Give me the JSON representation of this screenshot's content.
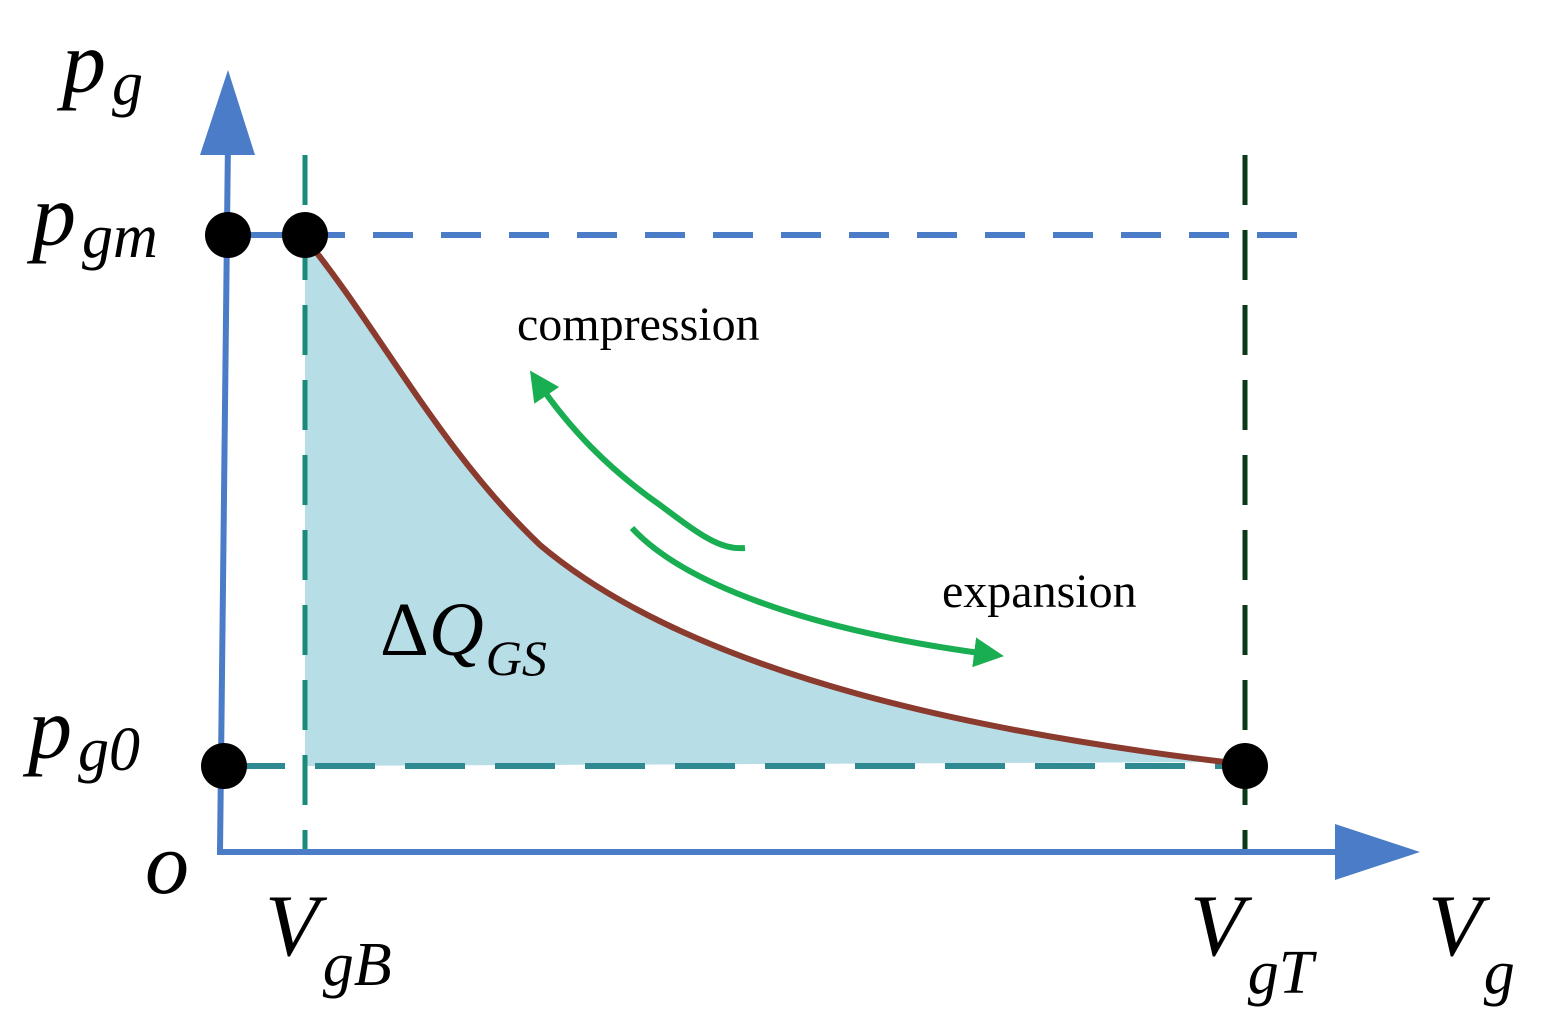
{
  "diagram": {
    "axes": {
      "y_label": "p",
      "y_label_sub": "g",
      "x_label": "V",
      "x_label_sub": "g",
      "origin_label": "o"
    },
    "levels": {
      "p_max": {
        "main": "p",
        "sub": "gm"
      },
      "p_min": {
        "main": "p",
        "sub": "g0"
      }
    },
    "volumes": {
      "v_bottom": {
        "main": "V",
        "sub": "gB"
      },
      "v_top": {
        "main": "V",
        "sub": "gT"
      }
    },
    "area_label": {
      "delta": "Δ",
      "main": "Q",
      "sub": "GS"
    },
    "process_labels": {
      "compression": "compression",
      "expansion": "expansion"
    },
    "colors": {
      "axis": "#4a7cc7",
      "curve": "#8b3a2e",
      "fill": "#b7dde7",
      "arrow": "#1aae52",
      "vline_left": "#1a8a7a",
      "vline_right": "#0a3a18",
      "hline_bottom": "#2e8a90",
      "point": "#000000"
    }
  }
}
